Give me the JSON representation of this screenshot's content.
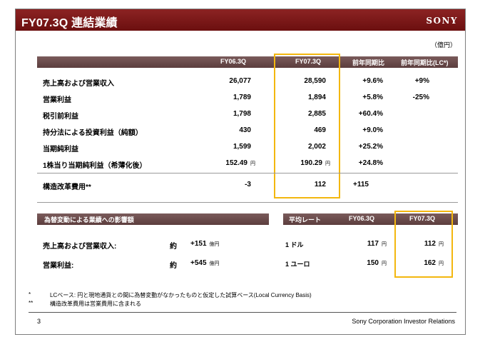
{
  "header": {
    "title": "FY07.3Q 連結業績",
    "logo": "SONY"
  },
  "unit": "（億円）",
  "main_table": {
    "columns": [
      "FY06.3Q",
      "FY07.3Q",
      "前年同期比",
      "前年同期比(LC*)"
    ],
    "rows": [
      {
        "label": "売上高および営業収入",
        "fy06": "26,077",
        "fy07": "28,590",
        "yoy": "+9.6%",
        "lc": "+9%"
      },
      {
        "label": "営業利益",
        "fy06": "1,789",
        "fy07": "1,894",
        "yoy": "+5.8%",
        "lc": "-25%"
      },
      {
        "label": "税引前利益",
        "fy06": "1,798",
        "fy07": "2,885",
        "yoy": "+60.4%",
        "lc": ""
      },
      {
        "label": "持分法による投資利益（純額）",
        "fy06": "430",
        "fy07": "469",
        "yoy": "+9.0%",
        "lc": ""
      },
      {
        "label": "当期純利益",
        "fy06": "1,599",
        "fy07": "2,002",
        "yoy": "+25.2%",
        "lc": ""
      },
      {
        "label": "1株当り当期純利益（希薄化後）",
        "fy06": "152.49",
        "fy06_unit": "円",
        "fy07": "190.29",
        "fy07_unit": "円",
        "yoy": "+24.8%",
        "lc": ""
      },
      {
        "label": "構造改革費用**",
        "fy06": "-3",
        "fy07": "112",
        "yoy": "+115",
        "lc": ""
      }
    ]
  },
  "fx_impact": {
    "title": "為替変動による業績への影響額",
    "rows": [
      {
        "label": "売上高および営業収入:",
        "prefix": "約",
        "value": "+151",
        "unit": "億円"
      },
      {
        "label": "営業利益:",
        "prefix": "約",
        "value": "+545",
        "unit": "億円"
      }
    ]
  },
  "avg_rate": {
    "columns": [
      "平均レート",
      "FY06.3Q",
      "FY07.3Q"
    ],
    "rows": [
      {
        "label": "1 ドル",
        "fy06": "117",
        "fy07": "112",
        "unit": "円"
      },
      {
        "label": "1 ユーロ",
        "fy06": "150",
        "fy07": "162",
        "unit": "円"
      }
    ]
  },
  "notes": [
    {
      "mark": "*",
      "text": "LCベース: 円と現地通貨との間に為替変動がなかったものと仮定した試算ベース(Local Currency Basis)"
    },
    {
      "mark": "**",
      "text": "構造改革費用は営業費用に含まれる"
    }
  ],
  "footer": {
    "page": "3",
    "text": "Sony Corporation Investor Relations"
  }
}
